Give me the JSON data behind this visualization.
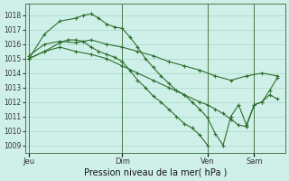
{
  "background_color": "#cff0e8",
  "grid_color": "#a8d8c8",
  "line_color": "#2d6e2d",
  "xlabel": "Pression niveau de la mer( hPa )",
  "ylim": [
    1008.5,
    1018.8
  ],
  "yticks": [
    1009,
    1010,
    1011,
    1012,
    1013,
    1014,
    1015,
    1016,
    1017,
    1018
  ],
  "xtick_labels": [
    "Jeu",
    "Dim",
    "Ven",
    "Sam"
  ],
  "xtick_positions": [
    0,
    12,
    23,
    29
  ],
  "xlim": [
    -0.5,
    33
  ],
  "series": [
    {
      "x": [
        0,
        2,
        4,
        6,
        7,
        8,
        9,
        10,
        11,
        12,
        13,
        14,
        15,
        16,
        17,
        18,
        19,
        20,
        21,
        22,
        23,
        24,
        25,
        26,
        27,
        28,
        29,
        30,
        31,
        32
      ],
      "y": [
        1015.0,
        1016.7,
        1017.6,
        1017.8,
        1018.0,
        1018.1,
        1017.8,
        1017.4,
        1017.2,
        1017.1,
        1016.5,
        1015.8,
        1015.0,
        1014.4,
        1013.8,
        1013.3,
        1012.8,
        1012.5,
        1012.0,
        1011.5,
        1010.9,
        1009.8,
        1009.0,
        1011.0,
        1011.8,
        1010.4,
        1011.8,
        1012.0,
        1012.8,
        1013.7
      ]
    },
    {
      "x": [
        0,
        2,
        4,
        6,
        8,
        10,
        12,
        14,
        16,
        18,
        20,
        22,
        24,
        26,
        28,
        30,
        32
      ],
      "y": [
        1015.2,
        1016.0,
        1016.2,
        1016.1,
        1016.3,
        1016.0,
        1015.8,
        1015.5,
        1015.2,
        1014.8,
        1014.5,
        1014.2,
        1013.8,
        1013.5,
        1013.8,
        1014.0,
        1013.8
      ]
    },
    {
      "x": [
        0,
        2,
        4,
        6,
        8,
        10,
        12,
        14,
        16,
        18,
        20,
        22,
        23,
        24,
        25,
        26,
        27,
        28,
        29,
        30,
        31,
        32
      ],
      "y": [
        1015.0,
        1015.5,
        1015.8,
        1015.5,
        1015.3,
        1015.0,
        1014.5,
        1014.0,
        1013.5,
        1013.0,
        1012.5,
        1012.0,
        1011.8,
        1011.5,
        1011.2,
        1010.8,
        1010.4,
        1010.3,
        1011.8,
        1012.0,
        1012.5,
        1012.2
      ]
    },
    {
      "x": [
        0,
        2,
        4,
        5,
        6,
        7,
        8,
        9,
        10,
        11,
        12,
        13,
        14,
        15,
        16,
        17,
        18,
        19,
        20,
        21,
        22,
        23
      ],
      "y": [
        1015.0,
        1015.5,
        1016.1,
        1016.3,
        1016.3,
        1016.2,
        1015.8,
        1015.5,
        1015.3,
        1015.1,
        1014.8,
        1014.2,
        1013.5,
        1013.0,
        1012.4,
        1012.0,
        1011.5,
        1011.0,
        1010.5,
        1010.2,
        1009.7,
        1009.0
      ]
    }
  ],
  "vlines_x": [
    0,
    12,
    23,
    29
  ]
}
